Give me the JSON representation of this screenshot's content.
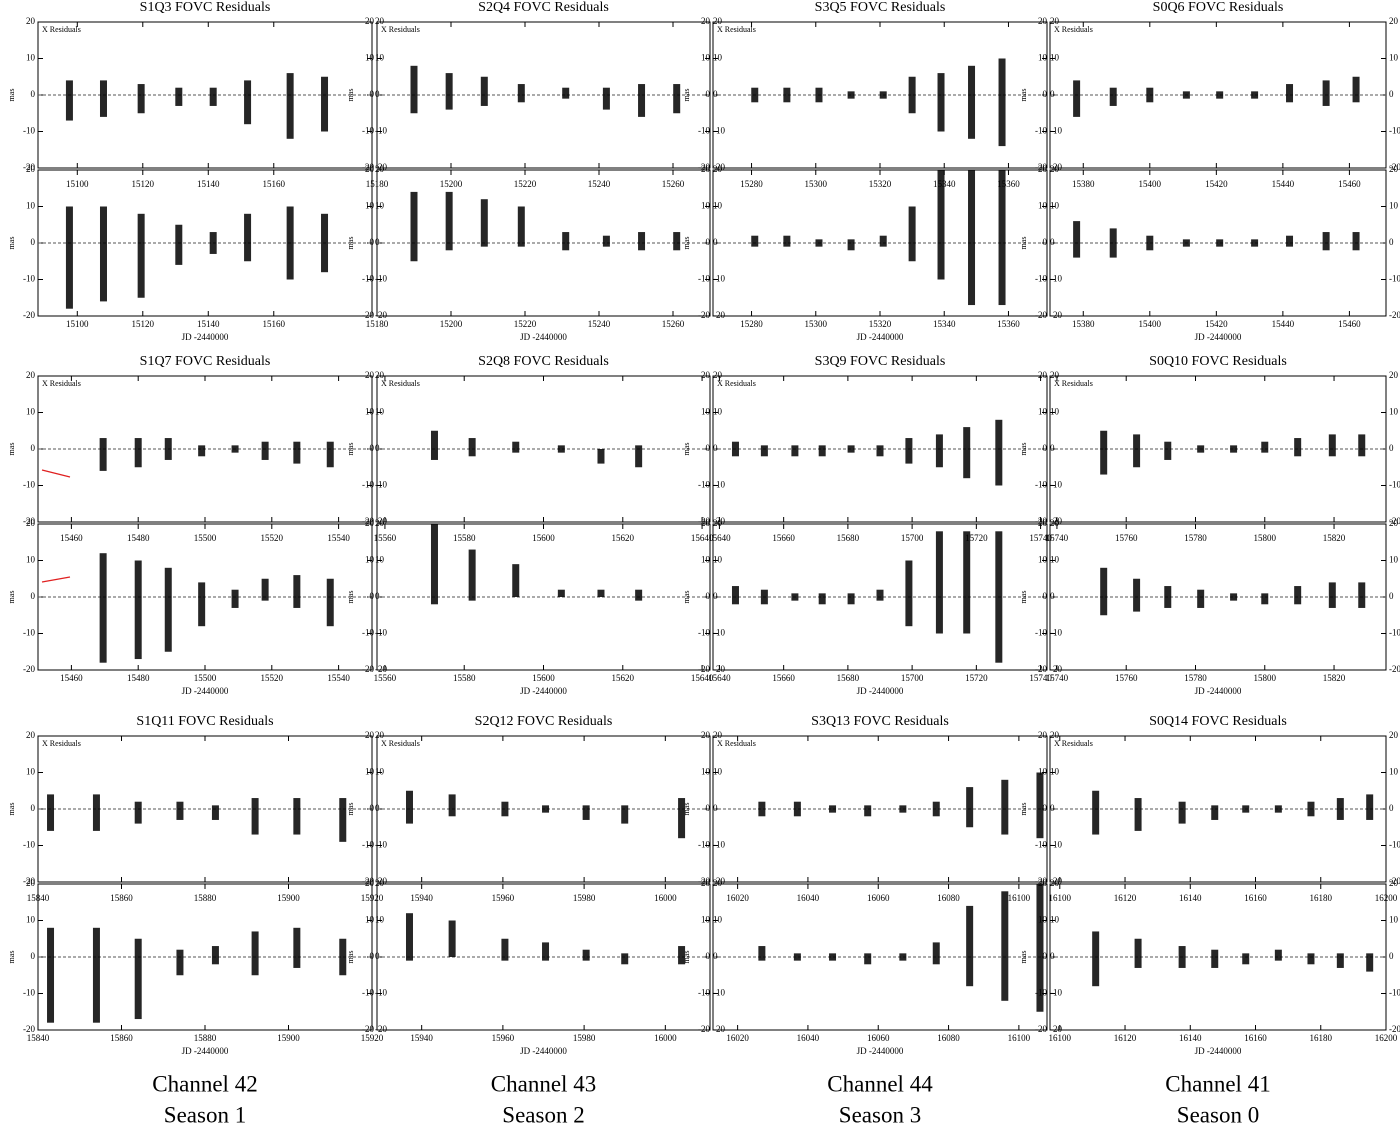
{
  "chart_data": [
    {
      "type": "range",
      "title": "S1Q3 FOVC Residuals",
      "x_label": "JD -2440000",
      "y_label": "mas",
      "xlim": [
        15088,
        15190
      ],
      "xticks": [
        15100,
        15120,
        15140,
        15160
      ],
      "ylim": [
        -20,
        20
      ],
      "yticks": [
        -20,
        -10,
        0,
        10,
        20
      ],
      "color": "#000000",
      "panels": [
        {
          "label": "X Residuals",
          "x": [
            15097.6,
            15108,
            15119.5,
            15131,
            15141.5,
            15152,
            15165,
            15175.5
          ],
          "low": [
            -7,
            -6,
            -5,
            -3,
            -3,
            -8,
            -12,
            -10
          ],
          "high": [
            4,
            4,
            3,
            2,
            2,
            4,
            6,
            5
          ]
        },
        {
          "x": [
            15097.6,
            15108,
            15119.5,
            15131,
            15141.5,
            15152,
            15165,
            15175.5
          ],
          "low": [
            -18,
            -16,
            -15,
            -6,
            -3,
            -5,
            -10,
            -8
          ],
          "high": [
            10,
            10,
            8,
            5,
            3,
            8,
            10,
            8
          ]
        }
      ]
    },
    {
      "type": "range",
      "title": "S2Q4 FOVC Residuals",
      "x_label": "JD -2440000",
      "y_label": "mas",
      "xlim": [
        15180,
        15270
      ],
      "xticks": [
        15180,
        15200,
        15220,
        15240,
        15260
      ],
      "ylim": [
        -20,
        20
      ],
      "yticks": [
        -20,
        -10,
        0,
        10,
        20
      ],
      "color": "#000000",
      "panels": [
        {
          "label": "X Residuals",
          "x": [
            15190,
            15199.5,
            15209,
            15219,
            15231,
            15242,
            15251.5,
            15261
          ],
          "low": [
            -5,
            -4,
            -3,
            -2,
            -1,
            -4,
            -6,
            -5
          ],
          "high": [
            8,
            6,
            5,
            3,
            2,
            2,
            3,
            3
          ]
        },
        {
          "x": [
            15190,
            15199.5,
            15209,
            15219,
            15231,
            15242,
            15251.5,
            15261
          ],
          "low": [
            -5,
            -2,
            -1,
            -1,
            -2,
            -1,
            -2,
            -2
          ],
          "high": [
            14,
            14,
            12,
            10,
            3,
            2,
            3,
            3
          ]
        }
      ]
    },
    {
      "type": "range",
      "title": "S3Q5 FOVC Residuals",
      "x_label": "JD -2440000",
      "y_label": "mas",
      "xlim": [
        15268,
        15372
      ],
      "xticks": [
        15280,
        15300,
        15320,
        15340,
        15360
      ],
      "ylim": [
        -20,
        20
      ],
      "yticks": [
        -20,
        -10,
        0,
        10,
        20
      ],
      "color": "#000000",
      "panels": [
        {
          "label": "X Residuals",
          "x": [
            15281,
            15291,
            15301,
            15311,
            15321,
            15330,
            15339,
            15348.5,
            15358
          ],
          "low": [
            -2,
            -2,
            -2,
            -1,
            -1,
            -5,
            -10,
            -12,
            -14
          ],
          "high": [
            2,
            2,
            2,
            1,
            1,
            5,
            6,
            8,
            10
          ]
        },
        {
          "x": [
            15281,
            15291,
            15301,
            15311,
            15321,
            15330,
            15339,
            15348.5,
            15358
          ],
          "low": [
            -1,
            -1,
            -1,
            -2,
            -1,
            -5,
            -10,
            -17,
            -17
          ],
          "high": [
            2,
            2,
            1,
            1,
            2,
            10,
            20,
            20,
            20
          ]
        }
      ]
    },
    {
      "type": "range",
      "title": "S0Q6 FOVC Residuals",
      "x_label": "JD -2440000",
      "y_label": "mas",
      "xlim": [
        15370,
        15471
      ],
      "xticks": [
        15380,
        15400,
        15420,
        15440,
        15460
      ],
      "ylim": [
        -20,
        20
      ],
      "yticks": [
        -20,
        -10,
        0,
        10,
        20
      ],
      "color": "#000000",
      "panels": [
        {
          "label": "X Residuals",
          "x": [
            15378,
            15389,
            15400,
            15411,
            15421,
            15431.5,
            15442,
            15453,
            15462
          ],
          "low": [
            -6,
            -3,
            -2,
            -1,
            -1,
            -1,
            -2,
            -3,
            -2
          ],
          "high": [
            4,
            2,
            2,
            1,
            1,
            1,
            3,
            4,
            5
          ]
        },
        {
          "x": [
            15378,
            15389,
            15400,
            15411,
            15421,
            15431.5,
            15442,
            15453,
            15462
          ],
          "low": [
            -4,
            -4,
            -2,
            -1,
            -1,
            -1,
            -1,
            -2,
            -2
          ],
          "high": [
            6,
            4,
            2,
            1,
            1,
            1,
            2,
            3,
            3
          ]
        }
      ]
    },
    {
      "type": "range",
      "title": "S1Q7 FOVC Residuals",
      "x_label": "JD -2440000",
      "y_label": "mas",
      "xlim": [
        15450,
        15550
      ],
      "xticks": [
        15460,
        15480,
        15500,
        15520,
        15540
      ],
      "ylim": [
        -20,
        20
      ],
      "yticks": [
        -20,
        -10,
        0,
        10,
        20
      ],
      "color": "#000000",
      "panels": [
        {
          "label": "X Residuals",
          "x": [
            15469.5,
            15480,
            15489,
            15499,
            15509,
            15518,
            15527.5,
            15537.5
          ],
          "low": [
            -6,
            -5,
            -3,
            -2,
            -1,
            -3,
            -4,
            -5
          ],
          "high": [
            3,
            3,
            3,
            1,
            1,
            2,
            2,
            2
          ]
        },
        {
          "x": [
            15469.5,
            15480,
            15489,
            15499,
            15509,
            15518,
            15527.5,
            15537.5
          ],
          "low": [
            -18,
            -17,
            -15,
            -8,
            -3,
            -1,
            -3,
            -8
          ],
          "high": [
            12,
            10,
            8,
            4,
            2,
            5,
            6,
            5
          ]
        }
      ]
    },
    {
      "type": "range",
      "title": "S2Q8 FOVC Residuals",
      "x_label": "JD -2440000",
      "y_label": "mas",
      "xlim": [
        15558,
        15642
      ],
      "xticks": [
        15560,
        15580,
        15600,
        15620,
        15640
      ],
      "ylim": [
        -20,
        20
      ],
      "yticks": [
        -20,
        -10,
        0,
        10,
        20
      ],
      "color": "#000000",
      "panels": [
        {
          "label": "X Residuals",
          "x": [
            15572.5,
            15582,
            15593,
            15604.5,
            15614.5,
            15624
          ],
          "low": [
            -3,
            -2,
            -1,
            -1,
            -4,
            -5
          ],
          "high": [
            5,
            3,
            2,
            1,
            0,
            1
          ]
        },
        {
          "x": [
            15572.5,
            15582,
            15593,
            15604.5,
            15614.5,
            15624
          ],
          "low": [
            -2,
            -1,
            0,
            0,
            0,
            -1
          ],
          "high": [
            20,
            13,
            9,
            2,
            2,
            2
          ]
        }
      ]
    },
    {
      "type": "range",
      "title": "S3Q9 FOVC Residuals",
      "x_label": "JD -2440000",
      "y_label": "mas",
      "xlim": [
        15638,
        15742
      ],
      "xticks": [
        15640,
        15660,
        15680,
        15700,
        15720,
        15740
      ],
      "ylim": [
        -20,
        20
      ],
      "yticks": [
        -20,
        -10,
        0,
        10,
        20
      ],
      "color": "#000000",
      "panels": [
        {
          "label": "X Residuals",
          "x": [
            15645,
            15654,
            15663.5,
            15672,
            15681,
            15690,
            15699,
            15708.5,
            15717,
            15727
          ],
          "low": [
            -2,
            -2,
            -2,
            -2,
            -1,
            -2,
            -4,
            -5,
            -8,
            -10
          ],
          "high": [
            2,
            1,
            1,
            1,
            1,
            1,
            3,
            4,
            6,
            8
          ]
        },
        {
          "x": [
            15645,
            15654,
            15663.5,
            15672,
            15681,
            15690,
            15699,
            15708.5,
            15717,
            15727
          ],
          "low": [
            -2,
            -2,
            -1,
            -2,
            -2,
            -1,
            -8,
            -10,
            -10,
            -18
          ],
          "high": [
            3,
            2,
            1,
            1,
            1,
            2,
            10,
            18,
            18,
            18
          ]
        }
      ]
    },
    {
      "type": "range",
      "title": "S0Q10 FOVC Residuals",
      "x_label": "JD -2440000",
      "y_label": "mas",
      "xlim": [
        15738,
        15835
      ],
      "xticks": [
        15740,
        15760,
        15780,
        15800,
        15820
      ],
      "ylim": [
        -20,
        20
      ],
      "yticks": [
        -20,
        -10,
        0,
        10,
        20
      ],
      "color": "#000000",
      "panels": [
        {
          "label": "X Residuals",
          "x": [
            15753.5,
            15763,
            15772,
            15781.5,
            15791,
            15800,
            15809.5,
            15819.5,
            15828
          ],
          "low": [
            -7,
            -5,
            -3,
            -1,
            -1,
            -1,
            -2,
            -2,
            -2
          ],
          "high": [
            5,
            4,
            2,
            1,
            1,
            2,
            3,
            4,
            4
          ]
        },
        {
          "x": [
            15753.5,
            15763,
            15772,
            15781.5,
            15791,
            15800,
            15809.5,
            15819.5,
            15828
          ],
          "low": [
            -5,
            -4,
            -3,
            -3,
            -1,
            -2,
            -2,
            -3,
            -3
          ],
          "high": [
            8,
            5,
            3,
            2,
            1,
            1,
            3,
            4,
            4
          ]
        }
      ]
    },
    {
      "type": "range",
      "title": "S1Q11 FOVC Residuals",
      "x_label": "JD -2440000",
      "y_label": "mas",
      "xlim": [
        15840,
        15920
      ],
      "xticks": [
        15840,
        15860,
        15880,
        15900,
        15920
      ],
      "ylim": [
        -20,
        20
      ],
      "yticks": [
        -20,
        -10,
        0,
        10,
        20
      ],
      "color": "#000000",
      "panels": [
        {
          "label": "X Residuals",
          "x": [
            15843,
            15854,
            15864,
            15874,
            15882.5,
            15892,
            15902,
            15913
          ],
          "low": [
            -6,
            -6,
            -4,
            -3,
            -3,
            -7,
            -7,
            -9
          ],
          "high": [
            4,
            4,
            2,
            2,
            1,
            3,
            3,
            3
          ]
        },
        {
          "x": [
            15843,
            15854,
            15864,
            15874,
            15882.5,
            15892,
            15902,
            15913
          ],
          "low": [
            -18,
            -18,
            -17,
            -5,
            -2,
            -5,
            -3,
            -5
          ],
          "high": [
            8,
            8,
            5,
            2,
            3,
            7,
            8,
            5
          ]
        }
      ]
    },
    {
      "type": "range",
      "title": "S2Q12 FOVC Residuals",
      "x_label": "JD -2440000",
      "y_label": "mas",
      "xlim": [
        15929,
        16011
      ],
      "xticks": [
        15940,
        15960,
        15980,
        16000
      ],
      "ylim": [
        -20,
        20
      ],
      "yticks": [
        -20,
        -10,
        0,
        10,
        20
      ],
      "color": "#000000",
      "panels": [
        {
          "label": "X Residuals",
          "x": [
            15937,
            15947.5,
            15960.5,
            15970.5,
            15980.5,
            15990,
            16004
          ],
          "low": [
            -4,
            -2,
            -2,
            -1,
            -3,
            -4,
            -8
          ],
          "high": [
            5,
            4,
            2,
            1,
            1,
            1,
            3
          ]
        },
        {
          "x": [
            15937,
            15947.5,
            15960.5,
            15970.5,
            15980.5,
            15990,
            16004
          ],
          "low": [
            -1,
            0,
            -1,
            -1,
            -1,
            -2,
            -2
          ],
          "high": [
            12,
            10,
            5,
            4,
            2,
            1,
            3
          ]
        }
      ]
    },
    {
      "type": "range",
      "title": "S3Q13 FOVC Residuals",
      "x_label": "JD -2440000",
      "y_label": "mas",
      "xlim": [
        16013,
        16108
      ],
      "xticks": [
        16020,
        16040,
        16060,
        16080,
        16100
      ],
      "ylim": [
        -20,
        20
      ],
      "yticks": [
        -20,
        -10,
        0,
        10,
        20
      ],
      "color": "#000000",
      "panels": [
        {
          "label": "X Residuals",
          "x": [
            16026.9,
            16037,
            16047,
            16057,
            16067,
            16076.5,
            16086,
            16096,
            16106
          ],
          "low": [
            -2,
            -2,
            -1,
            -2,
            -1,
            -2,
            -5,
            -7,
            -8
          ],
          "high": [
            2,
            2,
            1,
            1,
            1,
            2,
            6,
            8,
            10
          ]
        },
        {
          "x": [
            16026.9,
            16037,
            16047,
            16057,
            16067,
            16076.5,
            16086,
            16096,
            16106
          ],
          "low": [
            -1,
            -1,
            -1,
            -2,
            -1,
            -2,
            -8,
            -12,
            -15
          ],
          "high": [
            3,
            1,
            1,
            1,
            1,
            4,
            14,
            18,
            20
          ]
        }
      ]
    },
    {
      "type": "range",
      "title": "S0Q14 FOVC Residuals",
      "x_label": "JD -2440000",
      "y_label": "mas",
      "xlim": [
        16097,
        16200
      ],
      "xticks": [
        16100,
        16120,
        16140,
        16160,
        16180,
        16200
      ],
      "ylim": [
        -20,
        20
      ],
      "yticks": [
        -20,
        -10,
        0,
        10,
        20
      ],
      "color": "#000000",
      "panels": [
        {
          "label": "X Residuals",
          "x": [
            16111,
            16124,
            16137.5,
            16147.5,
            16157,
            16167,
            16177,
            16186,
            16195
          ],
          "low": [
            -7,
            -6,
            -4,
            -3,
            -1,
            -1,
            -2,
            -3,
            -3
          ],
          "high": [
            5,
            3,
            2,
            1,
            1,
            1,
            2,
            3,
            4
          ]
        },
        {
          "x": [
            16111,
            16124,
            16137.5,
            16147.5,
            16157,
            16167,
            16177,
            16186,
            16195
          ],
          "low": [
            -8,
            -3,
            -3,
            -3,
            -2,
            -1,
            -2,
            -3,
            -4
          ],
          "high": [
            7,
            5,
            3,
            2,
            1,
            2,
            1,
            1,
            1
          ]
        }
      ]
    }
  ],
  "captions": [
    {
      "channel": "Channel 42",
      "season": "Season 1"
    },
    {
      "channel": "Channel 43",
      "season": "Season 2"
    },
    {
      "channel": "Channel 44",
      "season": "Season 3"
    },
    {
      "channel": "Channel 41",
      "season": "Season 0"
    }
  ]
}
